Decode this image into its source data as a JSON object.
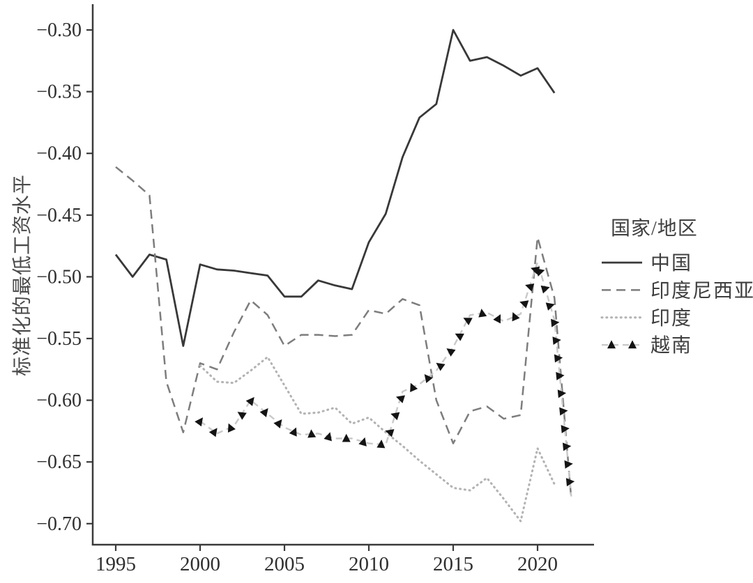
{
  "page": {
    "background": "#ffffff"
  },
  "legend": {
    "title": "国家/地区",
    "items": [
      {
        "label": "中国"
      },
      {
        "label": "印度尼西亚"
      },
      {
        "label": "印度"
      },
      {
        "label": "越南"
      }
    ]
  },
  "chart_data": {
    "type": "line",
    "title": "",
    "xlabel": "",
    "ylabel": "标准化的最低工资水平",
    "legend_title": "国家/地区",
    "legend_position": "right-center",
    "grid": false,
    "xlim": [
      1993.6,
      2023.4
    ],
    "ylim": [
      -0.717,
      -0.278
    ],
    "x_ticks": [
      1995,
      2000,
      2005,
      2010,
      2015,
      2020
    ],
    "x_tick_labels": [
      "1995",
      "2000",
      "2005",
      "2010",
      "2015",
      "2020"
    ],
    "y_ticks": [
      -0.3,
      -0.35,
      -0.4,
      -0.45,
      -0.5,
      -0.55,
      -0.6,
      -0.65,
      -0.7
    ],
    "y_tick_labels": [
      "−0.30",
      "−0.35",
      "−0.40",
      "−0.45",
      "−0.50",
      "−0.55",
      "−0.60",
      "−0.65",
      "−0.70"
    ],
    "axis_color": "#3a3a3a",
    "tick_label_color": "#2f2f2f",
    "legend_text_color": "#3f3f3f",
    "series": [
      {
        "key": "china",
        "name": "中国",
        "style": "solid",
        "color": "#383838",
        "marker": "none",
        "x": [
          1995,
          1996,
          1997,
          1998,
          1999,
          2000,
          2001,
          2002,
          2003,
          2004,
          2005,
          2006,
          2007,
          2008,
          2009,
          2010,
          2011,
          2012,
          2013,
          2014,
          2015,
          2016,
          2017,
          2018,
          2019,
          2020,
          2021
        ],
        "y": [
          -0.482,
          -0.5,
          -0.482,
          -0.486,
          -0.556,
          -0.49,
          -0.494,
          -0.495,
          -0.497,
          -0.499,
          -0.516,
          -0.516,
          -0.503,
          -0.507,
          -0.51,
          -0.472,
          -0.449,
          -0.403,
          -0.371,
          -0.36,
          -0.3,
          -0.325,
          -0.322,
          -0.329,
          -0.337,
          -0.331,
          -0.351
        ]
      },
      {
        "key": "indonesia",
        "name": "印度尼西亚",
        "style": "dashed",
        "color": "#7d7d7d",
        "marker": "none",
        "x": [
          1995,
          1996,
          1997,
          1998,
          1999,
          2000,
          2001,
          2002,
          2003,
          2004,
          2005,
          2006,
          2007,
          2008,
          2009,
          2010,
          2011,
          2012,
          2013,
          2014,
          2015,
          2016,
          2017,
          2018,
          2019,
          2020,
          2021,
          2022
        ],
        "y": [
          -0.411,
          -0.422,
          -0.434,
          -0.585,
          -0.626,
          -0.57,
          -0.575,
          -0.545,
          -0.519,
          -0.531,
          -0.556,
          -0.547,
          -0.547,
          -0.548,
          -0.547,
          -0.527,
          -0.53,
          -0.518,
          -0.523,
          -0.6,
          -0.635,
          -0.609,
          -0.605,
          -0.615,
          -0.612,
          -0.468,
          -0.517,
          -0.68
        ]
      },
      {
        "key": "india",
        "name": "印度",
        "style": "dotted",
        "color": "#b3b3b3",
        "marker": "none",
        "x": [
          2000,
          2001,
          2002,
          2003,
          2004,
          2005,
          2006,
          2007,
          2008,
          2009,
          2010,
          2011,
          2012,
          2013,
          2014,
          2015,
          2016,
          2017,
          2018,
          2019,
          2020,
          2021
        ],
        "y": [
          -0.572,
          -0.585,
          -0.586,
          -0.576,
          -0.565,
          -0.588,
          -0.611,
          -0.61,
          -0.606,
          -0.619,
          -0.614,
          -0.626,
          -0.637,
          -0.649,
          -0.66,
          -0.671,
          -0.673,
          -0.663,
          -0.68,
          -0.698,
          -0.639,
          -0.668
        ]
      },
      {
        "key": "vietnam",
        "name": "越南",
        "style": "dashed-light",
        "color": "#c9c9c9",
        "marker": "triangle",
        "marker_color": "#141414",
        "x": [
          2000,
          2001,
          2002,
          2003,
          2004,
          2005,
          2006,
          2007,
          2008,
          2009,
          2010,
          2011,
          2012,
          2013,
          2014,
          2015,
          2016,
          2017,
          2018,
          2019,
          2020,
          2021,
          2022
        ],
        "y": [
          -0.617,
          -0.627,
          -0.621,
          -0.6,
          -0.611,
          -0.622,
          -0.628,
          -0.627,
          -0.631,
          -0.631,
          -0.635,
          -0.636,
          -0.593,
          -0.587,
          -0.576,
          -0.557,
          -0.531,
          -0.529,
          -0.536,
          -0.53,
          -0.488,
          -0.535,
          -0.678
        ]
      }
    ]
  }
}
